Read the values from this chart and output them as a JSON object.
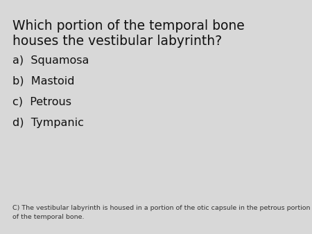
{
  "background_color": "#d8d8d8",
  "title_line1": "Which portion of the temporal bone",
  "title_line2": "houses the vestibular labyrinth?",
  "title_fontsize": 13.5,
  "title_color": "#111111",
  "options": [
    "a)  Squamosa",
    "b)  Mastoid",
    "c)  Petrous",
    "d)  Tympanic"
  ],
  "options_fontsize": 11.5,
  "options_color": "#111111",
  "footer": "C) The vestibular labyrinth is housed in a portion of the otic capsule in the petrous portion\nof the temporal bone.",
  "footer_fontsize": 6.8,
  "footer_color": "#333333"
}
